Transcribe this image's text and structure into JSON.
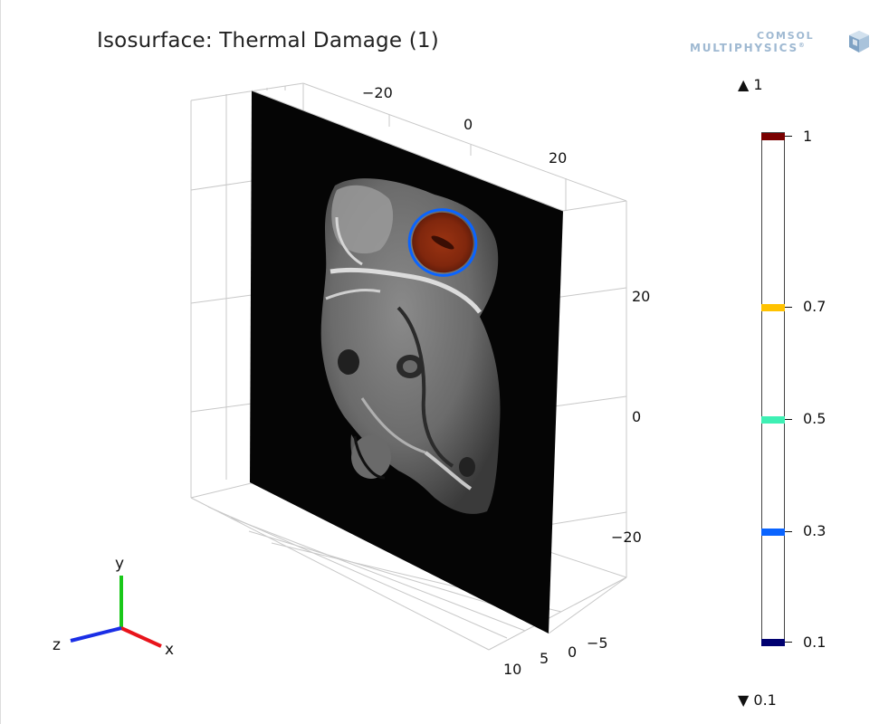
{
  "plot": {
    "title": "Isosurface: Thermal Damage (1)"
  },
  "logo": {
    "line1": "COMSOL",
    "line2": "MULTIPHYSICS",
    "mark": "®",
    "color": "#9fb9d2",
    "icon": "comsol-cube-icon"
  },
  "axes": {
    "x_label": "x",
    "y_label": "y",
    "z_label": "z",
    "x_ticks": [
      "−20",
      "0",
      "20"
    ],
    "y_ticks": [
      "20",
      "0",
      "−20"
    ],
    "z_ticks": [
      "10",
      "5",
      "0",
      "−5"
    ],
    "x_color": "#e8141b",
    "y_color": "#19c819",
    "z_color": "#1a2ee6"
  },
  "legend": {
    "max_label": "▲ 1",
    "min_label": "▼ 0.1",
    "levels": [
      {
        "label": "1",
        "value": 1.0,
        "color": "#7a0000"
      },
      {
        "label": "0.7",
        "value": 0.7,
        "color": "#ffc200"
      },
      {
        "label": "0.5",
        "value": 0.5,
        "color": "#3ef0b4"
      },
      {
        "label": "0.3",
        "value": 0.3,
        "color": "#0a64ff"
      },
      {
        "label": "0.1",
        "value": 0.1,
        "color": "#000070"
      }
    ]
  }
}
